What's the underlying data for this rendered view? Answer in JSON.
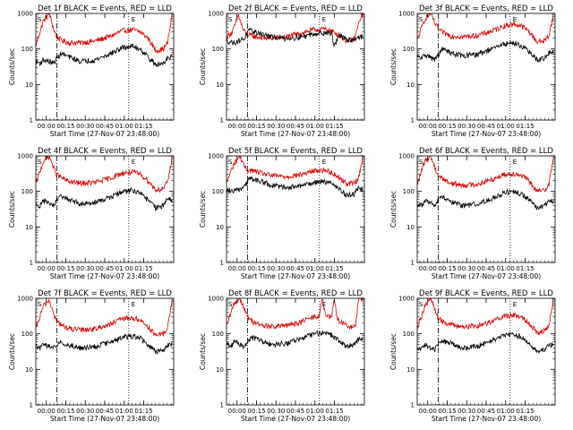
{
  "colors": {
    "events": "#000000",
    "lld": "#e00000",
    "axes": "#000000",
    "background": "#ffffff"
  },
  "chart_data": [
    {
      "type": "line",
      "title": "Det 1f BLACK = Events, RED = LLD",
      "xlabel": "Start Time (27-Nov-07 23:48:00)",
      "ylabel": "Counts/sec",
      "x_ticks": [
        "00:00",
        "00:15",
        "00:30",
        "00:45",
        "01:00",
        "01:15"
      ],
      "y_ticks": [
        "1",
        "10",
        "100",
        "1000"
      ],
      "yscale": "log",
      "ylim": [
        1,
        1000
      ],
      "markers": {
        "S": "S",
        "E": "E"
      },
      "series": [
        {
          "color": "red",
          "x_min": [
            0,
            5,
            9,
            12,
            14,
            18,
            22,
            30,
            40,
            50,
            58,
            65,
            70,
            75,
            80,
            85,
            88,
            91
          ],
          "values": [
            130,
            600,
            1000,
            350,
            220,
            170,
            150,
            150,
            170,
            230,
            330,
            350,
            300,
            200,
            90,
            100,
            150,
            1000
          ]
        },
        {
          "color": "black",
          "x_min": [
            0,
            3,
            5,
            12,
            14,
            17,
            22,
            30,
            40,
            50,
            58,
            65,
            70,
            75,
            80,
            85,
            88
          ],
          "values": [
            45,
            40,
            50,
            40,
            55,
            75,
            60,
            45,
            50,
            75,
            110,
            120,
            100,
            60,
            35,
            40,
            60
          ]
        }
      ]
    },
    {
      "type": "line",
      "title": "Det 2f BLACK = Events, RED = LLD",
      "xlabel": "Start Time (27-Nov-07 23:48:00)",
      "ylabel": "Counts/sec",
      "x_ticks": [
        "00:00",
        "00:15",
        "00:30",
        "00:45",
        "01:00",
        "01:15"
      ],
      "y_ticks": [
        "1",
        "10",
        "100",
        "1000"
      ],
      "yscale": "log",
      "ylim": [
        1,
        1000
      ],
      "markers": {
        "S": "S",
        "E": "E"
      },
      "series": [
        {
          "color": "red",
          "x_min": [
            0,
            4,
            8,
            11,
            14,
            18,
            22,
            30,
            40,
            50,
            58,
            65,
            70,
            75,
            80,
            85,
            90
          ],
          "values": [
            220,
            300,
            900,
            350,
            250,
            230,
            210,
            200,
            220,
            280,
            350,
            360,
            320,
            250,
            170,
            180,
            900
          ]
        },
        {
          "color": "black",
          "x_min": [
            0,
            5,
            12,
            15,
            22,
            30,
            40,
            50,
            58,
            65,
            70,
            72,
            75,
            80,
            85,
            88
          ],
          "values": [
            170,
            150,
            200,
            330,
            280,
            220,
            200,
            220,
            270,
            290,
            280,
            120,
            250,
            180,
            190,
            220
          ]
        }
      ]
    },
    {
      "type": "line",
      "title": "Det 3f BLACK = Events, RED = LLD",
      "xlabel": "Start Time (27-Nov-07 23:48:00)",
      "ylabel": "Counts/sec",
      "x_ticks": [
        "00:00",
        "00:15",
        "00:30",
        "00:45",
        "01:00",
        "01:15"
      ],
      "y_ticks": [
        "1",
        "10",
        "100",
        "1000"
      ],
      "yscale": "log",
      "ylim": [
        1,
        1000
      ],
      "markers": {
        "S": "S",
        "E": "E"
      },
      "series": [
        {
          "color": "red",
          "x_min": [
            0,
            5,
            9,
            12,
            15,
            18,
            22,
            30,
            40,
            50,
            58,
            65,
            70,
            75,
            80,
            85,
            88,
            91
          ],
          "values": [
            180,
            700,
            1000,
            500,
            330,
            280,
            240,
            220,
            240,
            320,
            450,
            500,
            440,
            300,
            160,
            170,
            250,
            1000
          ]
        },
        {
          "color": "black",
          "x_min": [
            0,
            3,
            5,
            12,
            14,
            17,
            22,
            30,
            40,
            50,
            58,
            65,
            70,
            75,
            80,
            85,
            88
          ],
          "values": [
            60,
            55,
            70,
            50,
            70,
            100,
            80,
            65,
            70,
            100,
            140,
            150,
            120,
            80,
            50,
            55,
            80
          ]
        }
      ]
    },
    {
      "type": "line",
      "title": "Det 4f BLACK = Events, RED = LLD",
      "xlabel": "Start Time (27-Nov-07 23:48:00)",
      "ylabel": "Counts/sec",
      "x_ticks": [
        "00:00",
        "00:15",
        "00:30",
        "00:45",
        "01:00",
        "01:15"
      ],
      "y_ticks": [
        "1",
        "10",
        "100",
        "1000"
      ],
      "yscale": "log",
      "ylim": [
        1,
        1000
      ],
      "markers": {
        "S": "S",
        "E": "E"
      },
      "series": [
        {
          "color": "red",
          "x_min": [
            0,
            5,
            9,
            12,
            14,
            18,
            22,
            30,
            40,
            50,
            58,
            65,
            70,
            75,
            80,
            85,
            88,
            91
          ],
          "values": [
            160,
            700,
            1000,
            450,
            300,
            230,
            190,
            170,
            180,
            240,
            330,
            350,
            300,
            200,
            110,
            120,
            180,
            1000
          ]
        },
        {
          "color": "black",
          "x_min": [
            0,
            3,
            5,
            12,
            14,
            17,
            22,
            30,
            40,
            50,
            58,
            65,
            70,
            75,
            80,
            85,
            88
          ],
          "values": [
            45,
            40,
            55,
            40,
            55,
            75,
            60,
            45,
            50,
            70,
            100,
            110,
            90,
            55,
            35,
            40,
            60
          ]
        }
      ]
    },
    {
      "type": "line",
      "title": "Det 5f BLACK = Events, RED = LLD",
      "xlabel": "Start Time (27-Nov-07 23:48:00)",
      "ylabel": "Counts/sec",
      "x_ticks": [
        "00:00",
        "00:15",
        "00:30",
        "00:45",
        "01:00",
        "01:15"
      ],
      "y_ticks": [
        "1",
        "10",
        "100",
        "1000"
      ],
      "yscale": "log",
      "ylim": [
        1,
        1000
      ],
      "markers": {
        "S": "S",
        "E": "E"
      },
      "series": [
        {
          "color": "red",
          "x_min": [
            0,
            5,
            9,
            12,
            14,
            18,
            22,
            30,
            40,
            50,
            58,
            65,
            70,
            75,
            80,
            85,
            88,
            91
          ],
          "values": [
            180,
            600,
            1000,
            500,
            400,
            380,
            340,
            280,
            260,
            300,
            380,
            400,
            350,
            250,
            170,
            170,
            230,
            1000
          ]
        },
        {
          "color": "black",
          "x_min": [
            0,
            5,
            12,
            15,
            18,
            22,
            30,
            40,
            50,
            58,
            65,
            70,
            75,
            80,
            85,
            88
          ],
          "values": [
            110,
            100,
            130,
            230,
            220,
            200,
            150,
            130,
            140,
            180,
            190,
            170,
            120,
            80,
            85,
            120
          ]
        }
      ]
    },
    {
      "type": "line",
      "title": "Det 6f BLACK = Events, RED = LLD",
      "xlabel": "Start Time (27-Nov-07 23:48:00)",
      "ylabel": "Counts/sec",
      "x_ticks": [
        "00:00",
        "00:15",
        "00:30",
        "00:45",
        "01:00",
        "01:15"
      ],
      "y_ticks": [
        "1",
        "10",
        "100",
        "1000"
      ],
      "yscale": "log",
      "ylim": [
        1,
        1000
      ],
      "markers": {
        "S": "S",
        "E": "E"
      },
      "series": [
        {
          "color": "red",
          "x_min": [
            0,
            5,
            9,
            12,
            14,
            18,
            22,
            30,
            40,
            50,
            58,
            65,
            70,
            75,
            80,
            85,
            88,
            91
          ],
          "values": [
            160,
            700,
            1000,
            450,
            280,
            220,
            170,
            150,
            160,
            220,
            300,
            320,
            280,
            190,
            100,
            110,
            170,
            1000
          ]
        },
        {
          "color": "black",
          "x_min": [
            0,
            3,
            5,
            12,
            14,
            17,
            22,
            30,
            40,
            50,
            58,
            65,
            70,
            75,
            80,
            85,
            88
          ],
          "values": [
            45,
            40,
            55,
            40,
            55,
            70,
            55,
            40,
            45,
            65,
            95,
            100,
            85,
            55,
            35,
            40,
            55
          ]
        }
      ]
    },
    {
      "type": "line",
      "title": "Det 7f BLACK = Events, RED = LLD",
      "xlabel": "Start Time (27-Nov-07 23:48:00)",
      "ylabel": "Counts/sec",
      "x_ticks": [
        "00:00",
        "00:15",
        "00:30",
        "00:45",
        "01:00",
        "01:15"
      ],
      "y_ticks": [
        "1",
        "10",
        "100",
        "1000"
      ],
      "yscale": "log",
      "ylim": [
        1,
        1000
      ],
      "markers": {
        "S": "S",
        "E": "E"
      },
      "series": [
        {
          "color": "red",
          "x_min": [
            0,
            5,
            9,
            12,
            14,
            18,
            22,
            30,
            40,
            50,
            58,
            65,
            70,
            75,
            80,
            85,
            88,
            91
          ],
          "values": [
            140,
            600,
            900,
            350,
            220,
            170,
            140,
            130,
            140,
            190,
            270,
            280,
            240,
            160,
            90,
            100,
            150,
            1000
          ]
        },
        {
          "color": "black",
          "x_min": [
            0,
            3,
            5,
            12,
            14,
            17,
            22,
            30,
            40,
            50,
            58,
            65,
            70,
            75,
            80,
            85,
            88
          ],
          "values": [
            45,
            40,
            50,
            40,
            50,
            60,
            50,
            40,
            45,
            60,
            80,
            85,
            75,
            50,
            32,
            35,
            50
          ]
        }
      ]
    },
    {
      "type": "line",
      "title": "Det 8f BLACK = Events, RED = LLD",
      "xlabel": "Start Time (27-Nov-07 23:48:00)",
      "ylabel": "Counts/sec",
      "x_ticks": [
        "00:00",
        "00:15",
        "00:30",
        "00:45",
        "01:00",
        "01:15"
      ],
      "y_ticks": [
        "1",
        "10",
        "100",
        "1000"
      ],
      "yscale": "log",
      "ylim": [
        1,
        1000
      ],
      "markers": {
        "S": "S",
        "E": "E"
      },
      "series": [
        {
          "color": "red",
          "x_min": [
            0,
            5,
            9,
            12,
            14,
            18,
            22,
            30,
            40,
            50,
            58,
            62,
            64,
            66,
            70,
            72,
            74,
            78,
            82,
            86,
            88,
            91
          ],
          "values": [
            160,
            700,
            1000,
            500,
            300,
            220,
            180,
            160,
            170,
            220,
            300,
            320,
            1000,
            320,
            300,
            1000,
            250,
            200,
            150,
            160,
            1000,
            1000
          ]
        },
        {
          "color": "black",
          "x_min": [
            0,
            3,
            5,
            12,
            14,
            17,
            22,
            30,
            40,
            50,
            58,
            65,
            70,
            75,
            80,
            85,
            88
          ],
          "values": [
            50,
            45,
            60,
            45,
            60,
            80,
            65,
            50,
            55,
            75,
            100,
            110,
            95,
            65,
            45,
            50,
            70
          ]
        }
      ]
    },
    {
      "type": "line",
      "title": "Det 9f BLACK = Events, RED = LLD",
      "xlabel": "Start Time (27-Nov-07 23:48:00)",
      "ylabel": "Counts/sec",
      "x_ticks": [
        "00:00",
        "00:15",
        "00:30",
        "00:45",
        "01:00",
        "01:15"
      ],
      "y_ticks": [
        "1",
        "10",
        "100",
        "1000"
      ],
      "yscale": "log",
      "ylim": [
        1,
        1000
      ],
      "markers": {
        "S": "S",
        "E": "E"
      },
      "series": [
        {
          "color": "red",
          "x_min": [
            0,
            5,
            9,
            12,
            14,
            18,
            22,
            30,
            40,
            50,
            58,
            65,
            70,
            75,
            80,
            85,
            88,
            91
          ],
          "values": [
            150,
            600,
            1000,
            450,
            280,
            220,
            180,
            160,
            170,
            230,
            320,
            340,
            300,
            200,
            110,
            120,
            170,
            1000
          ]
        },
        {
          "color": "black",
          "x_min": [
            0,
            3,
            5,
            12,
            14,
            17,
            22,
            30,
            40,
            50,
            58,
            65,
            70,
            75,
            80,
            85,
            88
          ],
          "values": [
            40,
            38,
            50,
            38,
            50,
            65,
            55,
            40,
            45,
            65,
            90,
            95,
            80,
            50,
            32,
            35,
            50
          ]
        }
      ]
    }
  ]
}
